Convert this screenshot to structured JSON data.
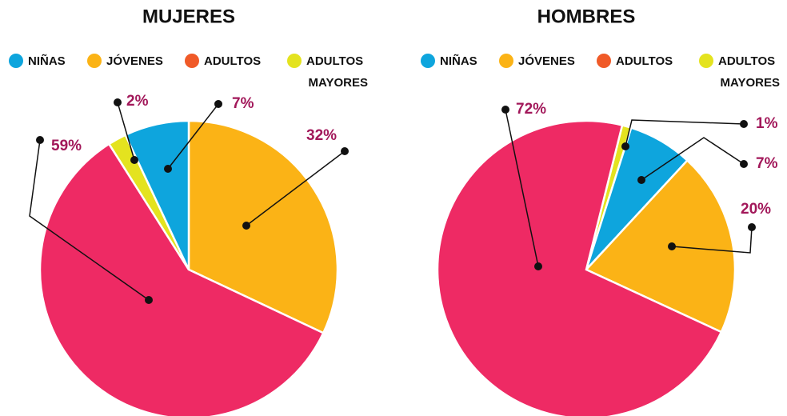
{
  "chart_data": [
    {
      "type": "pie",
      "title": "MUJERES",
      "categories": [
        "NIÑAS",
        "JÓVENES",
        "ADULTOS",
        "ADULTOS MAYORES"
      ],
      "values": [
        7,
        32,
        59,
        2
      ],
      "value_labels": [
        "7%",
        "32%",
        "59%",
        "2%"
      ],
      "colors": [
        "#0ea5dd",
        "#fbb316",
        "#ee2a64",
        "#e4e31f"
      ],
      "legend_colors": [
        "#0ea5dd",
        "#fbb316",
        "#f05a28",
        "#e4e31f"
      ]
    },
    {
      "type": "pie",
      "title": "HOMBRES",
      "categories": [
        "NIÑAS",
        "JÓVENES",
        "ADULTOS",
        "ADULTOS MAYORES"
      ],
      "values": [
        7,
        20,
        72,
        1
      ],
      "value_labels": [
        "7%",
        "20%",
        "72%",
        "1%"
      ],
      "colors": [
        "#0ea5dd",
        "#fbb316",
        "#ee2a64",
        "#e4e31f"
      ],
      "legend_colors": [
        "#0ea5dd",
        "#fbb316",
        "#f05a28",
        "#e4e31f"
      ]
    }
  ]
}
